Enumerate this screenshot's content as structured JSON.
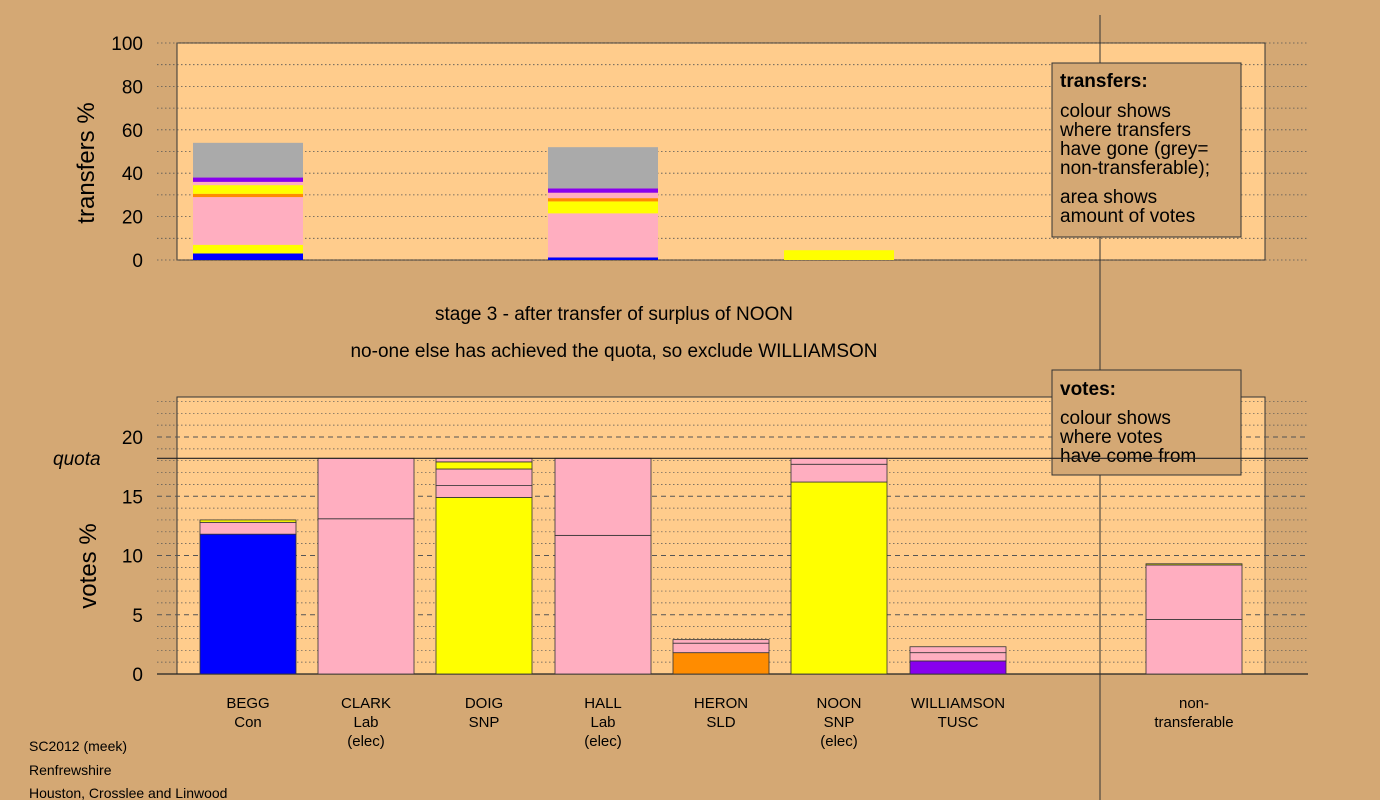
{
  "colors": {
    "background": "#d4a874",
    "panel": "#ffcc8c",
    "Con": "#0000ff",
    "Lab": "#ffaec0",
    "SNP": "#ffff00",
    "SLD": "#ff8c00",
    "TUSC": "#8800ee",
    "nontransferable": "#aaaaaa"
  },
  "stage_lines": [
    "stage 3 - after transfer of surplus of NOON",
    "no-one else has achieved the quota, so exclude WILLIAMSON"
  ],
  "footer": [
    "SC2012 (meek)",
    "Renfrewshire",
    "Houston, Crosslee and Linwood"
  ],
  "transfers_box": {
    "title": "transfers:",
    "lines1": [
      "colour shows",
      "where transfers",
      "have gone (grey=",
      "non-transferable);"
    ],
    "lines2": [
      "area shows",
      "amount of votes"
    ]
  },
  "votes_box": {
    "title": "votes:",
    "lines": [
      "colour shows",
      "where votes",
      "have come from"
    ]
  },
  "chart_data": [
    {
      "type": "bar",
      "stacked": true,
      "ylabel": "transfers %",
      "ylim": [
        0,
        100
      ],
      "yticks": [
        0,
        20,
        40,
        60,
        80,
        100
      ],
      "grid": "dotted",
      "bars": [
        {
          "candidate": "BEGG",
          "segments": [
            {
              "party": "Con",
              "value": 3
            },
            {
              "party": "SNP",
              "value": 4
            },
            {
              "party": "Lab",
              "value": 22
            },
            {
              "party": "SLD",
              "value": 1.5
            },
            {
              "party": "SNP",
              "value": 4
            },
            {
              "party": "Lab",
              "value": 1.5
            },
            {
              "party": "TUSC",
              "value": 2
            },
            {
              "party": "nontransferable",
              "value": 16
            }
          ]
        },
        {
          "candidate": "HALL",
          "segments": [
            {
              "party": "Con",
              "value": 1.2
            },
            {
              "party": "Lab",
              "value": 20.3
            },
            {
              "party": "SNP",
              "value": 5.5
            },
            {
              "party": "SLD",
              "value": 1.5
            },
            {
              "party": "Lab",
              "value": 2.5
            },
            {
              "party": "TUSC",
              "value": 2
            },
            {
              "party": "nontransferable",
              "value": 19
            }
          ]
        },
        {
          "candidate": "NOON",
          "segments": [
            {
              "party": "SNP",
              "value": 4.5
            }
          ]
        }
      ]
    },
    {
      "type": "bar",
      "stacked": true,
      "ylabel": "votes %",
      "ylim": [
        0,
        23
      ],
      "yticks": [
        0,
        5,
        10,
        15,
        20
      ],
      "quota": 18.2,
      "quota_label": "quota",
      "grid": "dashed",
      "categories": [
        {
          "name": "BEGG",
          "lines": [
            "BEGG",
            "Con"
          ]
        },
        {
          "name": "CLARK",
          "lines": [
            "CLARK",
            "Lab",
            "(elec)"
          ]
        },
        {
          "name": "DOIG",
          "lines": [
            "DOIG",
            "SNP"
          ]
        },
        {
          "name": "HALL",
          "lines": [
            "HALL",
            "Lab",
            "(elec)"
          ]
        },
        {
          "name": "HERON",
          "lines": [
            "HERON",
            "SLD"
          ]
        },
        {
          "name": "NOON",
          "lines": [
            "NOON",
            "SNP",
            "(elec)"
          ]
        },
        {
          "name": "WILLIAMSON",
          "lines": [
            "WILLIAMSON",
            "TUSC"
          ]
        },
        {
          "name": "non-transferable",
          "lines": [
            "non-",
            "transferable"
          ]
        }
      ],
      "bars": [
        {
          "candidate": "BEGG",
          "segments": [
            {
              "party": "Con",
              "value": 11.8
            },
            {
              "party": "Lab",
              "value": 1.0
            },
            {
              "party": "SNP",
              "value": 0.2
            }
          ]
        },
        {
          "candidate": "CLARK",
          "segments": [
            {
              "party": "Lab",
              "value": 13.1
            },
            {
              "party": "Lab",
              "value": 5.1
            }
          ]
        },
        {
          "candidate": "DOIG",
          "segments": [
            {
              "party": "SNP",
              "value": 14.9
            },
            {
              "party": "Lab",
              "value": 1.0
            },
            {
              "party": "Lab",
              "value": 1.4
            },
            {
              "party": "SNP",
              "value": 0.6
            },
            {
              "party": "Lab",
              "value": 0.3
            }
          ]
        },
        {
          "candidate": "HALL",
          "segments": [
            {
              "party": "Lab",
              "value": 11.7
            },
            {
              "party": "Lab",
              "value": 6.5
            }
          ]
        },
        {
          "candidate": "HERON",
          "segments": [
            {
              "party": "SLD",
              "value": 1.8
            },
            {
              "party": "Lab",
              "value": 0.8
            },
            {
              "party": "Lab",
              "value": 0.3
            }
          ]
        },
        {
          "candidate": "NOON",
          "segments": [
            {
              "party": "SNP",
              "value": 16.2
            },
            {
              "party": "Lab",
              "value": 1.5
            },
            {
              "party": "Lab",
              "value": 0.5
            }
          ]
        },
        {
          "candidate": "WILLIAMSON",
          "segments": [
            {
              "party": "TUSC",
              "value": 1.1
            },
            {
              "party": "Lab",
              "value": 0.7
            },
            {
              "party": "Lab",
              "value": 0.5
            }
          ]
        },
        {
          "candidate": "non-transferable",
          "segments": [
            {
              "party": "Lab",
              "value": 4.6
            },
            {
              "party": "Lab",
              "value": 4.6
            },
            {
              "party": "SNP",
              "value": 0.1
            }
          ]
        }
      ]
    }
  ]
}
